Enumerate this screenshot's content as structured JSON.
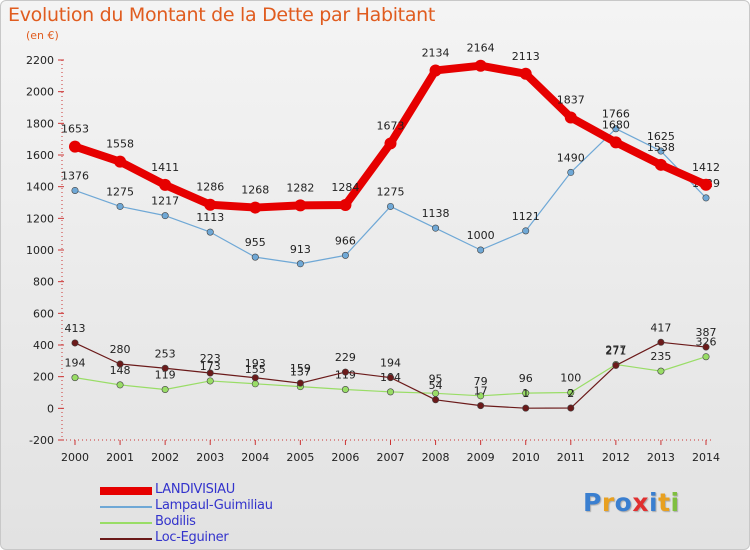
{
  "chart_data": {
    "type": "line",
    "title": "Evolution du Montant de la Dette par Habitant",
    "subtitle": "(en €)",
    "categories": [
      "2000",
      "2001",
      "2002",
      "2003",
      "2004",
      "2005",
      "2006",
      "2007",
      "2008",
      "2009",
      "2010",
      "2011",
      "2012",
      "2013",
      "2014"
    ],
    "ylim": [
      -200,
      2200
    ],
    "yticks": [
      -200,
      0,
      200,
      400,
      600,
      800,
      1000,
      1200,
      1400,
      1600,
      1800,
      2000,
      2200
    ],
    "grid": false,
    "legend_position": "bottom-left",
    "series": [
      {
        "name": "LANDIVISIAU",
        "color": "#e60000",
        "values": [
          1653,
          1558,
          1411,
          1286,
          1268,
          1282,
          1284,
          1673,
          2134,
          2164,
          2113,
          1837,
          1680,
          1538,
          1412
        ]
      },
      {
        "name": "Lampaul-Guimiliau",
        "color": "#6fa8d6",
        "values": [
          1376,
          1275,
          1217,
          1113,
          955,
          913,
          966,
          1275,
          1138,
          1000,
          1121,
          1490,
          1766,
          1625,
          1329
        ]
      },
      {
        "name": "Bodilis",
        "color": "#99dd66",
        "values": [
          194,
          148,
          119,
          173,
          155,
          137,
          119,
          104,
          95,
          79,
          96,
          100,
          277,
          235,
          326
        ]
      },
      {
        "name": "Loc-Eguiner",
        "color": "#6b1a1a",
        "values": [
          413,
          280,
          253,
          223,
          193,
          159,
          229,
          194,
          54,
          17,
          1,
          2,
          271,
          417,
          387
        ]
      }
    ]
  },
  "branding": {
    "logo_letters": [
      "P",
      "r",
      "o",
      "x",
      "i",
      "t",
      "i"
    ],
    "logo_colors": [
      "#3a7fd0",
      "#e8a020",
      "#3a7fd0",
      "#e03030",
      "#3a7fd0",
      "#e8a020",
      "#7fbf3f"
    ]
  }
}
